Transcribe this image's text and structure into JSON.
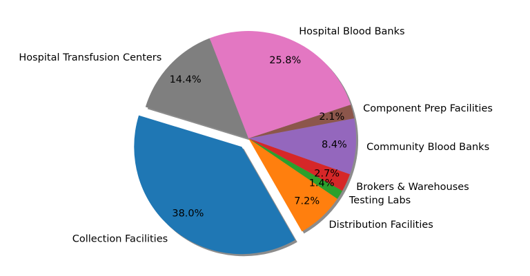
{
  "chart_data": {
    "type": "pie",
    "categories": [
      "Collection Facilities",
      "Distribution Facilities",
      "Testing Labs",
      "Brokers & Warehouses",
      "Community Blood Banks",
      "Component Prep Facilities",
      "Hospital Blood Banks",
      "Hospital Transfusion Centers"
    ],
    "values": [
      38.0,
      7.2,
      1.4,
      2.7,
      8.4,
      2.1,
      25.8,
      14.4
    ],
    "value_labels": [
      "38.0%",
      "7.2%",
      "1.4%",
      "2.7%",
      "8.4%",
      "2.1%",
      "25.8%",
      "14.4%"
    ],
    "colors": [
      "#1f77b4",
      "#ff7f0e",
      "#2ca02c",
      "#d62728",
      "#9467bd",
      "#8c564b",
      "#e377c2",
      "#7f7f7f"
    ],
    "exploded": [
      "Collection Facilities"
    ],
    "shadow": true,
    "legend": "none"
  }
}
